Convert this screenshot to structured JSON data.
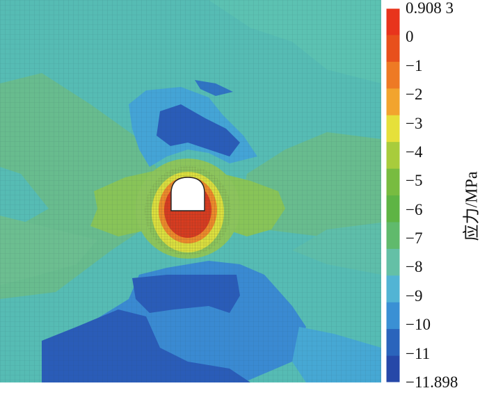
{
  "figure": {
    "legend_title": "应力/MPa",
    "legend_labels": [
      "0.908 3",
      "0",
      "−1",
      "−2",
      "−3",
      "−4",
      "−5",
      "−6",
      "−7",
      "−8",
      "−9",
      "−10",
      "−11",
      "−11.898"
    ],
    "legend_colors": [
      "#e8341c",
      "#e8501c",
      "#ee7a24",
      "#f2a42e",
      "#e6e03a",
      "#a8cc3c",
      "#78bc40",
      "#5eb444",
      "#60ba6c",
      "#64c0a6",
      "#52b4d4",
      "#3a90d4",
      "#2a64bc",
      "#2648a8"
    ],
    "contour_colors": {
      "background": "#56bcb4",
      "band_green": "#66bc8c",
      "band_yellowgreen": "#86c45a",
      "deep_blue": "#2a5cb8",
      "mid_blue": "#3a8ad2",
      "light_blue": "#4aa8d8",
      "opening": "#ffffff",
      "high_red": "#d83c20",
      "orange": "#ee8a2a",
      "yellow": "#e4e23c"
    }
  }
}
